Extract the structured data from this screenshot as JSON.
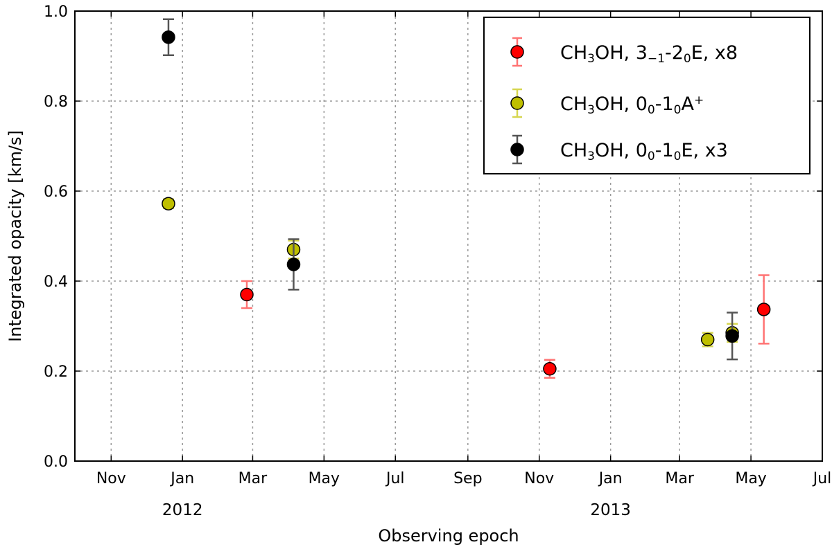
{
  "chart_data": {
    "type": "scatter",
    "xlabel": "Observing epoch",
    "ylabel": "Integrated opacity [km/s]",
    "ylim": [
      0.0,
      1.0
    ],
    "yticks": [
      "0.0",
      "0.2",
      "0.4",
      "0.6",
      "0.8",
      "1.0"
    ],
    "xlim": [
      "2011-10-01",
      "2013-07-01"
    ],
    "xticks": [
      {
        "label": "Nov",
        "date": "2011-11-01"
      },
      {
        "label": "Jan",
        "date": "2012-01-01"
      },
      {
        "label": "Mar",
        "date": "2012-03-01"
      },
      {
        "label": "May",
        "date": "2012-05-01"
      },
      {
        "label": "Jul",
        "date": "2012-07-01"
      },
      {
        "label": "Sep",
        "date": "2012-09-01"
      },
      {
        "label": "Nov",
        "date": "2012-11-01"
      },
      {
        "label": "Jan",
        "date": "2013-01-01"
      },
      {
        "label": "Mar",
        "date": "2013-03-01"
      },
      {
        "label": "May",
        "date": "2013-05-01"
      },
      {
        "label": "Jul",
        "date": "2013-07-01"
      }
    ],
    "year_labels": [
      {
        "label": "2012",
        "date": "2012-01-01"
      },
      {
        "label": "2013",
        "date": "2013-01-01"
      }
    ],
    "grid": true,
    "legend_position": "top-right",
    "series": [
      {
        "name": "CH3OH, 3_{-1}-2_0 E, x8",
        "legend": {
          "a": "CH",
          "a_sub": "3",
          "b": "OH, 3",
          "b_sub": "−1",
          "c": "-2",
          "c_sub": "0",
          "d": "E, x8"
        },
        "marker_color": "#ff0000",
        "error_color": "#ff7373",
        "points": [
          {
            "x": "2012-02-25",
            "y": 0.37,
            "yerr": 0.03
          },
          {
            "x": "2012-11-10",
            "y": 0.205,
            "yerr": 0.02
          },
          {
            "x": "2013-05-12",
            "y": 0.337,
            "yerr": 0.076
          }
        ]
      },
      {
        "name": "CH3OH, 0_0-1_0 A+",
        "legend": {
          "a": "CH",
          "a_sub": "3",
          "b": "OH, 0",
          "b_sub": "0",
          "c": "-1",
          "c_sub": "0",
          "d": "A",
          "d_sup": "+"
        },
        "marker_color": "#bfbf00",
        "error_color": "#d6d650",
        "points": [
          {
            "x": "2011-12-20",
            "y": 0.572,
            "yerr": 0.01
          },
          {
            "x": "2012-04-05",
            "y": 0.47,
            "yerr": 0.02
          },
          {
            "x": "2013-03-25",
            "y": 0.27,
            "yerr": 0.015
          },
          {
            "x": "2013-04-15",
            "y": 0.285,
            "yerr": 0.02
          }
        ]
      },
      {
        "name": "CH3OH, 0_0-1_0 E, x3",
        "legend": {
          "a": "CH",
          "a_sub": "3",
          "b": "OH, 0",
          "b_sub": "0",
          "c": "-1",
          "c_sub": "0",
          "d": "E,  x3"
        },
        "marker_color": "#000000",
        "error_color": "#555555",
        "points": [
          {
            "x": "2011-12-20",
            "y": 0.942,
            "yerr": 0.04
          },
          {
            "x": "2012-04-05",
            "y": 0.437,
            "yerr": 0.056
          },
          {
            "x": "2013-04-15",
            "y": 0.278,
            "yerr": 0.052
          }
        ]
      }
    ]
  }
}
